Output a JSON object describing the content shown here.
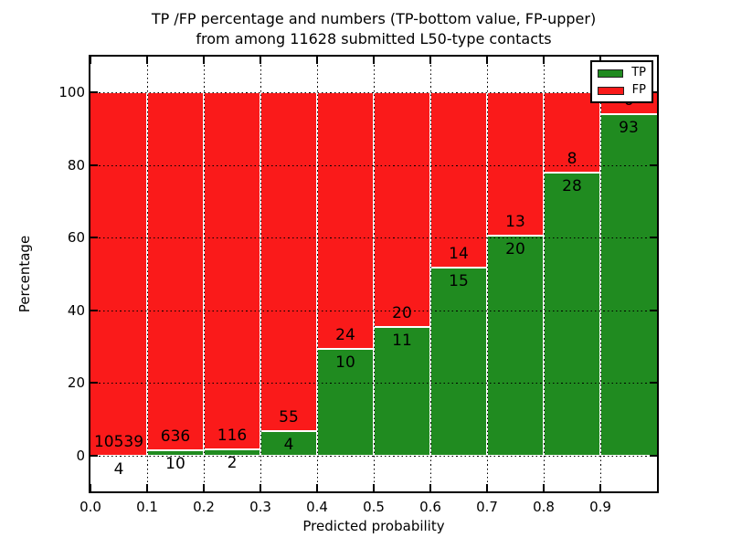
{
  "title_line1": "TP /FP percentage and numbers (TP-bottom value, FP-upper)",
  "title_line2": "from among 11628 submitted L50-type contacts",
  "total_contacts": "11628",
  "chart_data": {
    "type": "bar",
    "stacked": true,
    "normalized_to": 100,
    "title": "TP /FP percentage and numbers (TP-bottom value, FP-upper) from among 11628 submitted L50-type contacts",
    "xlabel": "Predicted probability",
    "ylabel": "Percentage",
    "x_tick_labels": [
      "0.0",
      "0.1",
      "0.2",
      "0.3",
      "0.4",
      "0.5",
      "0.6",
      "0.7",
      "0.8",
      "0.9"
    ],
    "y_ticks": [
      0,
      20,
      40,
      60,
      80,
      100
    ],
    "xlim": [
      0.0,
      1.0
    ],
    "ylim": [
      -10,
      110
    ],
    "bin_width": 0.1,
    "categories": [
      "0.0-0.1",
      "0.1-0.2",
      "0.2-0.3",
      "0.3-0.4",
      "0.4-0.5",
      "0.5-0.6",
      "0.6-0.7",
      "0.7-0.8",
      "0.8-0.9",
      "0.9-1.0"
    ],
    "series": [
      {
        "name": "TP",
        "color": "#208b20",
        "values": [
          4,
          10,
          2,
          4,
          10,
          11,
          15,
          20,
          28,
          93
        ]
      },
      {
        "name": "FP",
        "color": "#fa1a1a",
        "values": [
          10539,
          636,
          116,
          55,
          24,
          20,
          14,
          13,
          8,
          6
        ]
      }
    ],
    "tp_percent": [
      0.04,
      1.55,
      1.69,
      6.78,
      29.41,
      35.48,
      51.72,
      60.61,
      77.78,
      93.94
    ],
    "grid": {
      "visible": true,
      "style": "dotted",
      "color": "#000000"
    },
    "legend": {
      "position": "upper-right",
      "entries": [
        "TP",
        "FP"
      ]
    }
  },
  "colors": {
    "tp_green": "#208b20",
    "fp_red": "#fa1a1a",
    "background": "#ffffff",
    "text": "#000000",
    "bar_edge": "#ffffff"
  }
}
